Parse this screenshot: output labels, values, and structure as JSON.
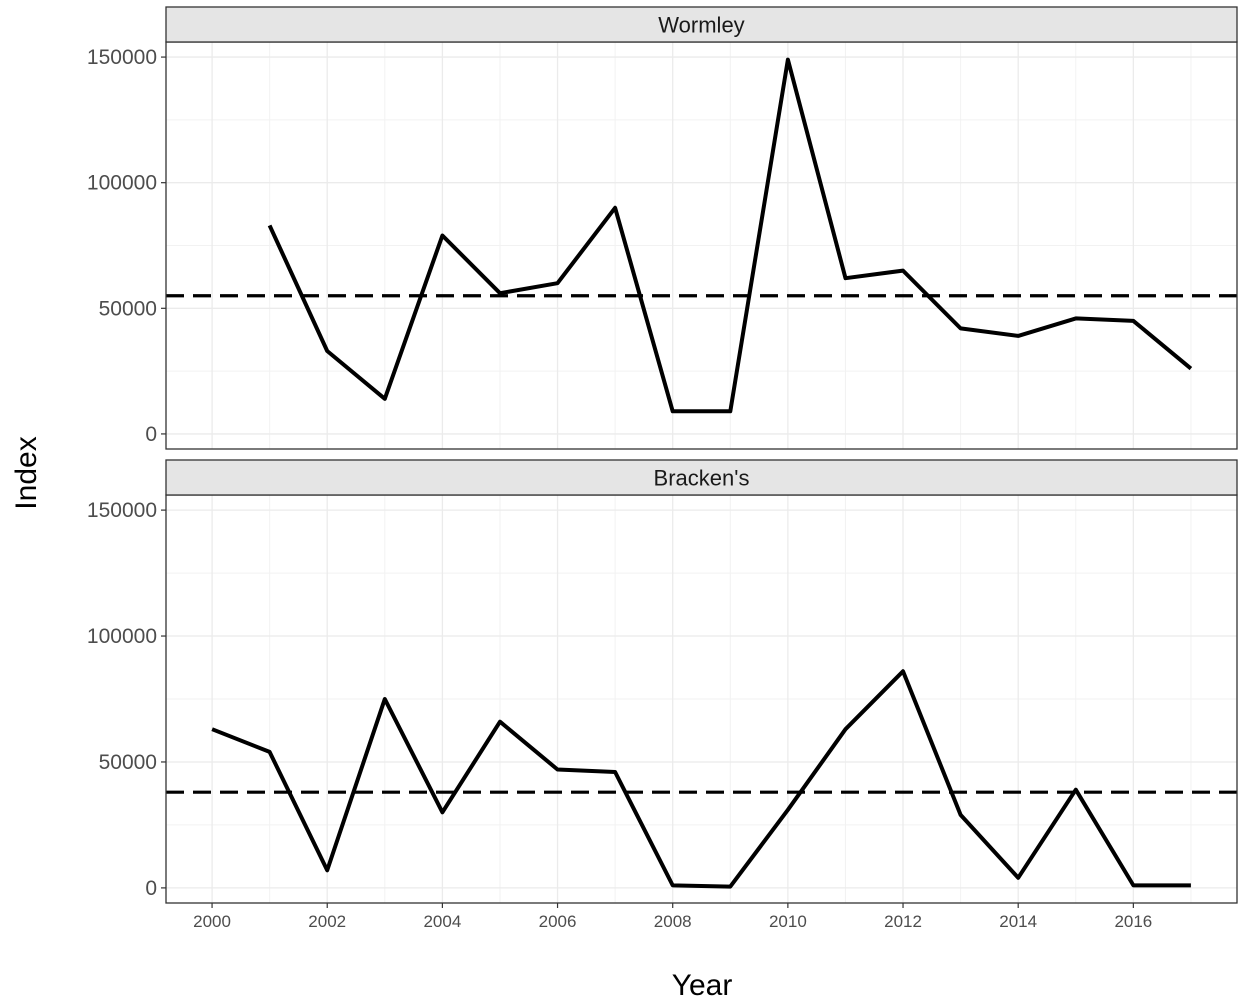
{
  "chart_data": {
    "type": "line",
    "xlabel": "Year",
    "ylabel": "Index",
    "xlim": [
      1999.2,
      2017.8
    ],
    "ylim": [
      -6000,
      156000
    ],
    "x_ticks": [
      2000,
      2002,
      2004,
      2006,
      2008,
      2010,
      2012,
      2014,
      2016
    ],
    "y_ticks": [
      0,
      50000,
      100000,
      150000
    ],
    "grid": true,
    "panels": [
      {
        "strip": "Wormley",
        "x": [
          2001,
          2002,
          2003,
          2004,
          2005,
          2006,
          2007,
          2008,
          2009,
          2010,
          2011,
          2012,
          2013,
          2014,
          2015,
          2016,
          2017
        ],
        "values": [
          83000,
          33000,
          14000,
          79000,
          56000,
          60000,
          90000,
          9000,
          9000,
          149000,
          62000,
          65000,
          42000,
          39000,
          46000,
          45000,
          26000
        ],
        "reference_line": 55000
      },
      {
        "strip": "Bracken's",
        "x": [
          2000,
          2001,
          2002,
          2003,
          2004,
          2005,
          2006,
          2007,
          2008,
          2009,
          2010,
          2011,
          2012,
          2013,
          2014,
          2015,
          2016,
          2017
        ],
        "values": [
          63000,
          54000,
          7000,
          75000,
          30000,
          66000,
          47000,
          46000,
          1000,
          500,
          31000,
          63000,
          86000,
          29000,
          4000,
          39000,
          1000,
          1000
        ],
        "reference_line": 38000
      }
    ]
  }
}
